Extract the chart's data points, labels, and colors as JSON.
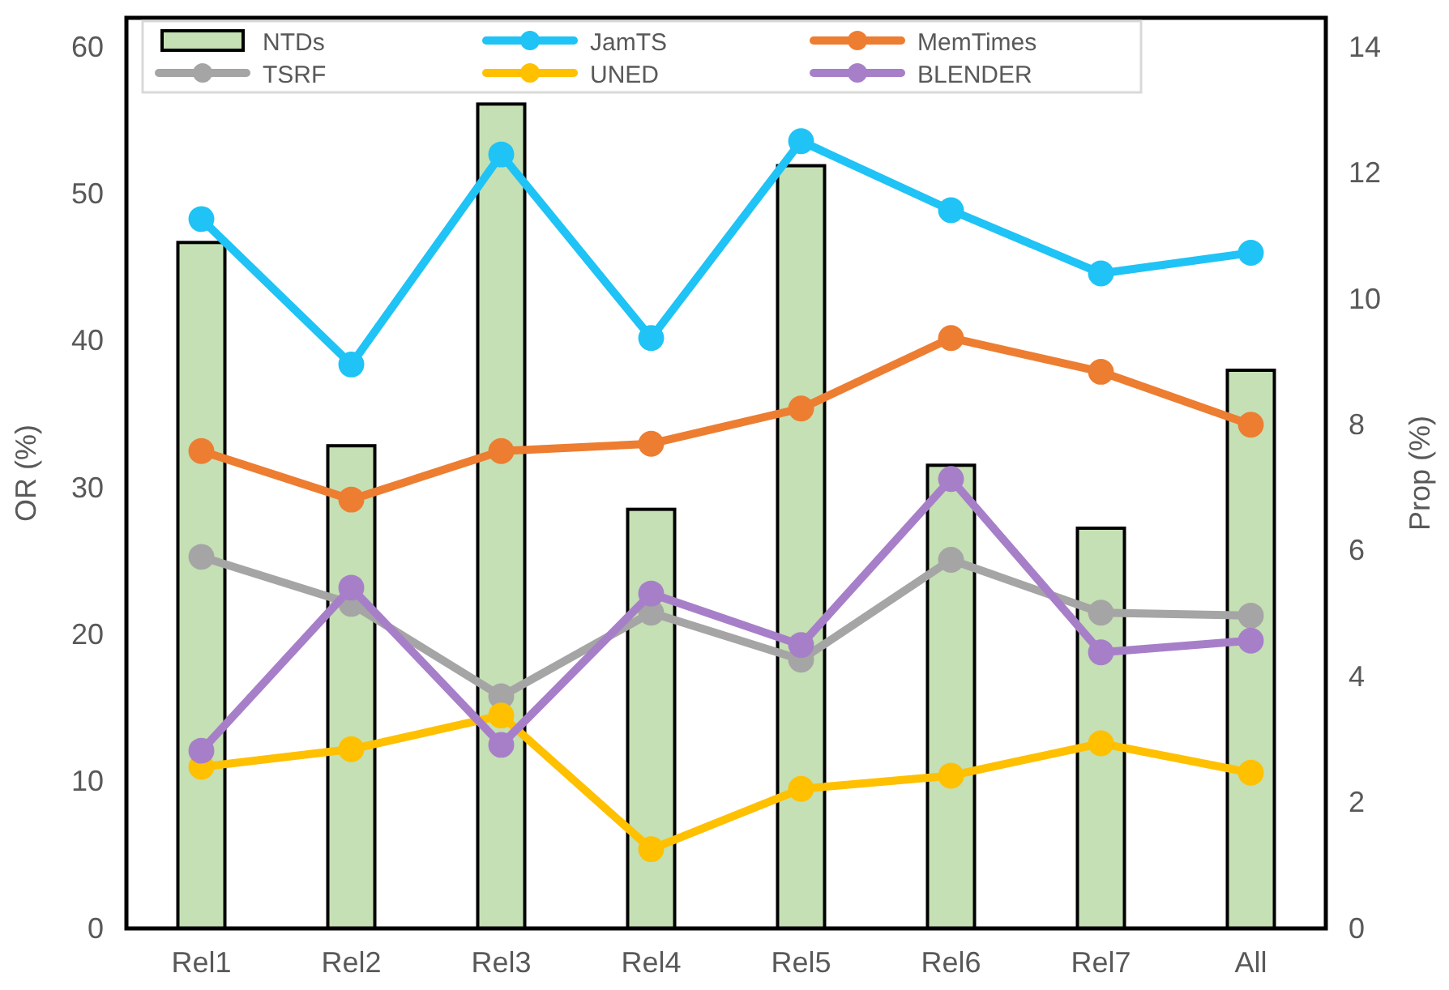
{
  "chart_data": {
    "type": "line",
    "categories": [
      "Rel1",
      "Rel2",
      "Rel3",
      "Rel4",
      "Rel5",
      "Rel6",
      "Rel7",
      "All"
    ],
    "ylabel": "OR (%)",
    "y2label": "Prop (%)",
    "ylim": [
      0,
      62
    ],
    "yticks": [
      0,
      10,
      20,
      30,
      40,
      50,
      60
    ],
    "y2lim": [
      0,
      14.47
    ],
    "y2ticks": [
      0,
      2,
      4,
      6,
      8,
      10,
      12,
      14
    ],
    "grid": false,
    "legend": "top",
    "marker": "circle",
    "line_style": "solid",
    "series": [
      {
        "name": "NTDs",
        "type": "bar",
        "axis": "y2",
        "color": "#c5e0b4",
        "values": [
          10.9,
          7.67,
          13.1,
          6.66,
          12.12,
          7.36,
          6.36,
          8.87
        ]
      },
      {
        "name": "JamTS",
        "color": "#1fc3f5",
        "values": [
          48.3,
          38.4,
          52.7,
          40.2,
          53.6,
          48.9,
          44.6,
          46.0
        ]
      },
      {
        "name": "MemTimes",
        "color": "#ed7d31",
        "values": [
          32.5,
          29.2,
          32.5,
          33.0,
          35.4,
          40.2,
          37.9,
          34.3
        ]
      },
      {
        "name": "TSRF",
        "color": "#a5a5a5",
        "values": [
          25.3,
          22.1,
          15.8,
          21.5,
          18.3,
          25.1,
          21.5,
          21.3
        ]
      },
      {
        "name": "UNED",
        "color": "#ffc000",
        "values": [
          11.0,
          12.2,
          14.5,
          5.4,
          9.5,
          10.4,
          12.6,
          10.6
        ]
      },
      {
        "name": "BLENDER",
        "color": "#a77fc9",
        "values": [
          12.1,
          23.2,
          12.5,
          22.8,
          19.3,
          30.6,
          18.8,
          19.6
        ]
      }
    ]
  }
}
